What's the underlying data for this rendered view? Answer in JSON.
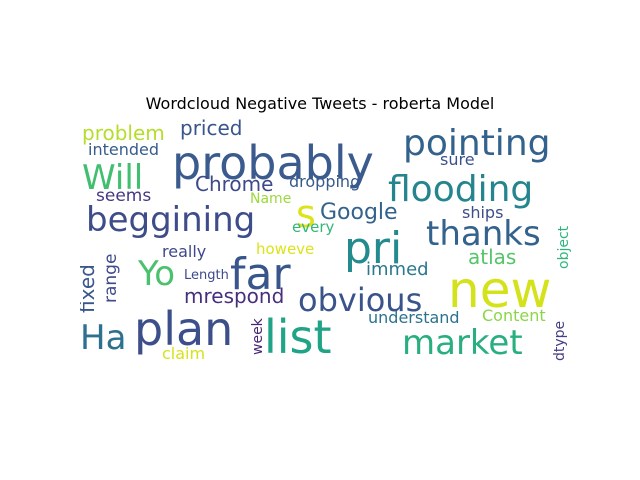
{
  "chart_data": {
    "type": "wordcloud",
    "title": "Wordcloud Negative Tweets - roberta Model",
    "words": [
      {
        "text": "probably",
        "color": "#3b5b8f",
        "vertical": false
      },
      {
        "text": "new",
        "color": "#d4e21a",
        "vertical": false
      },
      {
        "text": "pri",
        "color": "#238a8d",
        "vertical": false
      },
      {
        "text": "far",
        "color": "#39568c",
        "vertical": false
      },
      {
        "text": "plan",
        "color": "#3c4f8a",
        "vertical": false
      },
      {
        "text": "list",
        "color": "#20a386",
        "vertical": false
      },
      {
        "text": "pointing",
        "color": "#33638d",
        "vertical": false
      },
      {
        "text": "flooding",
        "color": "#25858e",
        "vertical": false
      },
      {
        "text": "thanks",
        "color": "#33628d",
        "vertical": false
      },
      {
        "text": "market",
        "color": "#29af7f",
        "vertical": false
      },
      {
        "text": "beggining",
        "color": "#3e4c8a",
        "vertical": false
      },
      {
        "text": "obvious",
        "color": "#3a538b",
        "vertical": false
      },
      {
        "text": "Will",
        "color": "#42be71",
        "vertical": false
      },
      {
        "text": "Yo",
        "color": "#4ac16d",
        "vertical": false
      },
      {
        "text": "Ha",
        "color": "#2d718e",
        "vertical": false
      },
      {
        "text": "s",
        "color": "#dde318",
        "vertical": false
      },
      {
        "text": "Google",
        "color": "#33638d",
        "vertical": false
      },
      {
        "text": "Chrome",
        "color": "#3e4989",
        "vertical": false
      },
      {
        "text": "mrespond",
        "color": "#472f7d",
        "vertical": false
      },
      {
        "text": "problem",
        "color": "#b5de2b",
        "vertical": false
      },
      {
        "text": "priced",
        "color": "#39558c",
        "vertical": false
      },
      {
        "text": "atlas",
        "color": "#54c568",
        "vertical": false
      },
      {
        "text": "immed",
        "color": "#2a788e",
        "vertical": false
      },
      {
        "text": "fixed",
        "color": "#39568c",
        "vertical": true
      },
      {
        "text": "range",
        "color": "#3e4a89",
        "vertical": true
      },
      {
        "text": "seems",
        "color": "#453882",
        "vertical": false
      },
      {
        "text": "intended",
        "color": "#365c8d",
        "vertical": false
      },
      {
        "text": "really",
        "color": "#3f4889",
        "vertical": false
      },
      {
        "text": "dropping",
        "color": "#375a8c",
        "vertical": false
      },
      {
        "text": "sure",
        "color": "#3b518b",
        "vertical": false
      },
      {
        "text": "ships",
        "color": "#3d4e8a",
        "vertical": false
      },
      {
        "text": "understand",
        "color": "#2c728e",
        "vertical": false
      },
      {
        "text": "Content",
        "color": "#8bd646",
        "vertical": false
      },
      {
        "text": "claim",
        "color": "#d8e219",
        "vertical": false
      },
      {
        "text": "week",
        "color": "#482576",
        "vertical": true
      },
      {
        "text": "every",
        "color": "#34b679",
        "vertical": false
      },
      {
        "text": "Name",
        "color": "#9bd93c",
        "vertical": false
      },
      {
        "text": "howeve",
        "color": "#dde318",
        "vertical": false
      },
      {
        "text": "Length",
        "color": "#3e4a89",
        "vertical": false
      },
      {
        "text": "object",
        "color": "#2fb47c",
        "vertical": true
      },
      {
        "text": "dtype",
        "color": "#433e85",
        "vertical": true
      }
    ]
  }
}
